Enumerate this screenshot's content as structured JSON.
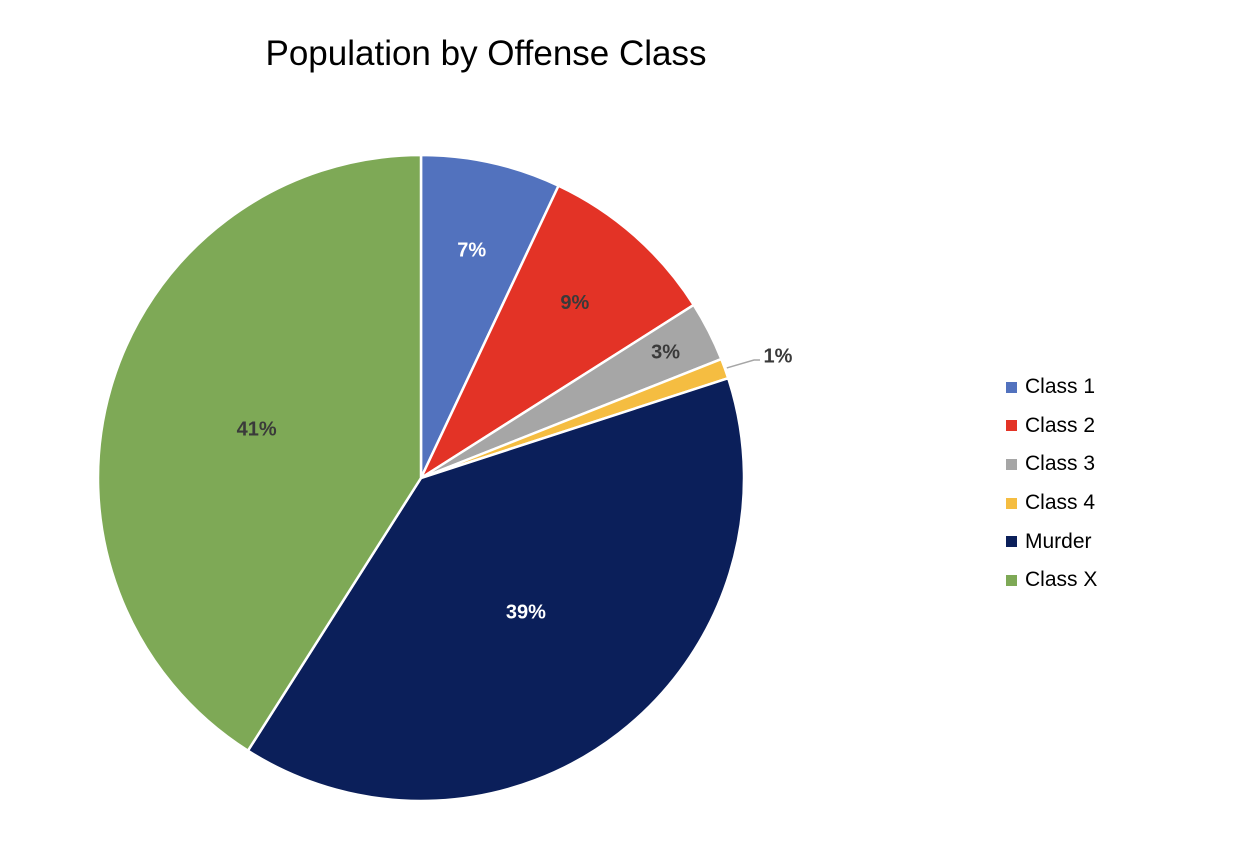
{
  "chart_data": {
    "type": "pie",
    "title": "Population by Offense Class",
    "categories": [
      "Class 1",
      "Class 2",
      "Class 3",
      "Class 4",
      "Murder",
      "Class X"
    ],
    "values": [
      7,
      9,
      3,
      1,
      39,
      41
    ],
    "labels": [
      "7%",
      "9%",
      "3%",
      "1%",
      "39%",
      "41%"
    ],
    "colors": [
      "#5272be",
      "#e33326",
      "#a6a6a6",
      "#f5bd41",
      "#0b1f5a",
      "#7ea956"
    ],
    "label_colors": [
      "#ffffff",
      "#3a3a3a",
      "#3a3a3a",
      "#3a3a3a",
      "#ffffff",
      "#3a3a3a"
    ],
    "start_angle": "12 o'clock",
    "direction": "clockwise",
    "legend_position": "right"
  },
  "legend": {
    "items": [
      {
        "label": "Class 1",
        "color": "#5272be"
      },
      {
        "label": "Class 2",
        "color": "#e33326"
      },
      {
        "label": "Class 3",
        "color": "#a6a6a6"
      },
      {
        "label": "Class 4",
        "color": "#f5bd41"
      },
      {
        "label": "Murder",
        "color": "#0b1f5a"
      },
      {
        "label": "Class X",
        "color": "#7ea956"
      }
    ]
  }
}
